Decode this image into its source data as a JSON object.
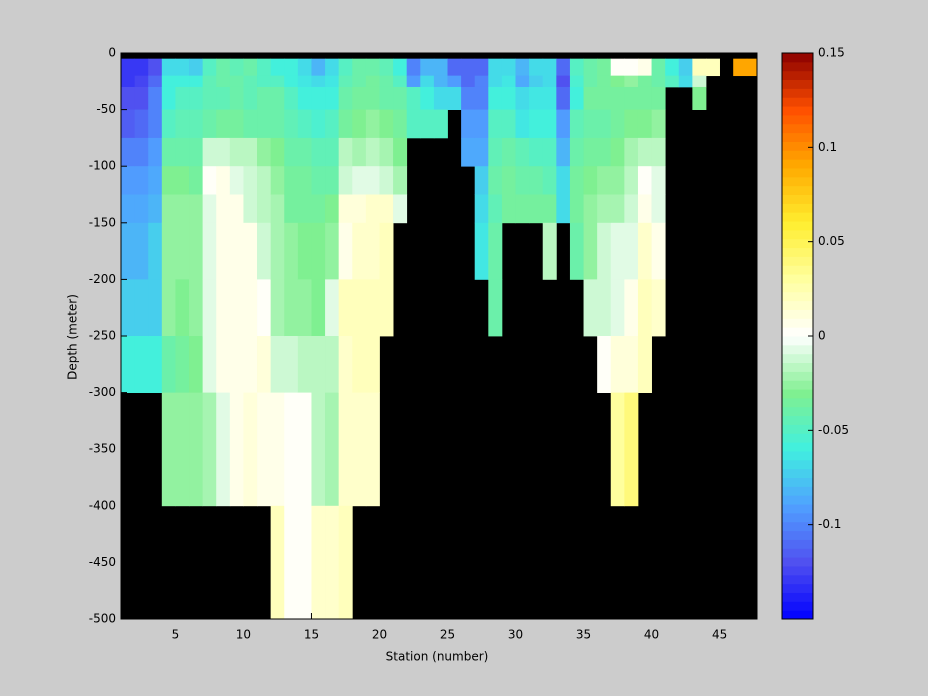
{
  "chart_data": {
    "type": "heatmap",
    "xlabel": "Station (number)",
    "ylabel": "Depth (meter)",
    "x": [
      1,
      2,
      3,
      4,
      5,
      6,
      7,
      8,
      9,
      10,
      11,
      12,
      13,
      14,
      15,
      16,
      17,
      18,
      19,
      20,
      21,
      22,
      23,
      24,
      25,
      26,
      27,
      28,
      29,
      30,
      31,
      32,
      33,
      34,
      35,
      36,
      37,
      38,
      39,
      40,
      41,
      42,
      43,
      44,
      45,
      46,
      47
    ],
    "y_edges": [
      0,
      -5,
      -20,
      -30,
      -50,
      -75,
      -100,
      -125,
      -150,
      -200,
      -250,
      -300,
      -400,
      -500
    ],
    "xlim": [
      1,
      47.75
    ],
    "ylim": [
      -500,
      0
    ],
    "xticks": [
      5,
      10,
      15,
      20,
      25,
      30,
      35,
      40,
      45
    ],
    "yticks": [
      0,
      -50,
      -100,
      -150,
      -200,
      -250,
      -300,
      -350,
      -400,
      -450,
      -500
    ],
    "clim": [
      -0.15,
      0.15
    ],
    "cticks": [
      -0.1,
      -0.05,
      0,
      0.05,
      0.1,
      0.15
    ],
    "colormap": [
      "#0000ff",
      "#5050f0",
      "#50a0ff",
      "#40f0e0",
      "#80f090",
      "#ffffff",
      "#ffffa0",
      "#ffee30",
      "#ffaa00",
      "#ff5000",
      "#8b0000"
    ],
    "missing_color": "#000000",
    "z": [
      [
        null,
        -0.13,
        -0.13,
        -0.12,
        -0.115,
        -0.1,
        -0.09,
        -0.085,
        -0.08,
        -0.075,
        -0.06,
        null,
        null
      ],
      [
        null,
        -0.13,
        -0.125,
        -0.12,
        -0.11,
        -0.1,
        -0.09,
        -0.085,
        -0.08,
        -0.075,
        -0.06,
        null,
        null
      ],
      [
        null,
        -0.12,
        -0.11,
        -0.1,
        -0.1,
        -0.09,
        -0.085,
        -0.08,
        -0.075,
        -0.075,
        -0.06,
        null,
        null
      ],
      [
        null,
        -0.07,
        -0.06,
        -0.06,
        -0.05,
        -0.04,
        -0.03,
        -0.025,
        -0.025,
        -0.025,
        -0.04,
        -0.025,
        null
      ],
      [
        null,
        -0.07,
        -0.06,
        -0.05,
        -0.045,
        -0.04,
        -0.03,
        -0.025,
        -0.025,
        -0.03,
        -0.035,
        -0.025,
        null
      ],
      [
        null,
        -0.075,
        -0.06,
        -0.05,
        -0.045,
        -0.04,
        -0.035,
        -0.025,
        -0.025,
        -0.025,
        -0.03,
        -0.025,
        null
      ],
      [
        null,
        -0.05,
        -0.045,
        -0.045,
        -0.04,
        -0.01,
        0,
        -0.005,
        -0.005,
        -0.005,
        -0.005,
        -0.02,
        null
      ],
      [
        null,
        -0.04,
        -0.04,
        -0.045,
        -0.035,
        -0.01,
        0.005,
        0.005,
        0.005,
        0.005,
        0.005,
        -0.005,
        null
      ],
      [
        null,
        -0.045,
        -0.04,
        -0.04,
        -0.035,
        -0.015,
        -0.005,
        0.005,
        0.005,
        0.005,
        0.005,
        0.005,
        null
      ],
      [
        null,
        -0.04,
        -0.045,
        -0.045,
        -0.04,
        -0.015,
        -0.01,
        -0.01,
        0.005,
        0.005,
        0.005,
        0.01,
        null
      ],
      [
        null,
        -0.05,
        -0.05,
        -0.04,
        -0.04,
        -0.025,
        -0.015,
        -0.015,
        -0.01,
        0,
        0.01,
        0.005,
        null
      ],
      [
        null,
        -0.06,
        -0.05,
        -0.04,
        -0.04,
        -0.03,
        -0.025,
        -0.02,
        -0.02,
        -0.02,
        -0.01,
        0.005,
        0.02
      ],
      [
        null,
        -0.06,
        -0.06,
        -0.05,
        -0.045,
        -0.04,
        -0.035,
        -0.035,
        -0.025,
        -0.025,
        -0.01,
        0,
        0
      ],
      [
        null,
        -0.07,
        -0.065,
        -0.06,
        -0.05,
        -0.04,
        -0.035,
        -0.035,
        -0.03,
        -0.025,
        -0.015,
        0,
        0
      ],
      [
        null,
        -0.08,
        -0.07,
        -0.06,
        -0.055,
        -0.045,
        -0.04,
        -0.035,
        -0.03,
        -0.03,
        -0.015,
        -0.015,
        0.015
      ],
      [
        null,
        -0.07,
        -0.065,
        -0.06,
        -0.05,
        -0.045,
        -0.04,
        -0.03,
        -0.025,
        -0.005,
        -0.015,
        -0.02,
        0.015
      ],
      [
        null,
        -0.05,
        -0.045,
        -0.04,
        -0.035,
        -0.015,
        -0.01,
        0.01,
        0.005,
        0.02,
        0.015,
        0.015,
        0.02
      ],
      [
        null,
        -0.04,
        -0.04,
        -0.035,
        -0.03,
        -0.02,
        -0.005,
        0.01,
        0.015,
        0.02,
        0.02,
        0.015,
        null
      ],
      [
        null,
        -0.04,
        -0.035,
        -0.035,
        -0.025,
        -0.015,
        -0.005,
        0.015,
        0.015,
        0.02,
        0.02,
        0.015,
        null
      ],
      [
        null,
        -0.045,
        -0.04,
        -0.04,
        -0.03,
        -0.02,
        -0.01,
        0.015,
        0.02,
        0.02,
        null,
        null,
        null
      ],
      [
        null,
        -0.06,
        -0.05,
        -0.04,
        -0.035,
        -0.03,
        -0.02,
        -0.005,
        null,
        null,
        null,
        null,
        null
      ],
      [
        null,
        -0.1,
        -0.09,
        -0.05,
        -0.05,
        null,
        null,
        null,
        null,
        null,
        null,
        null,
        null
      ],
      [
        null,
        -0.08,
        -0.07,
        -0.06,
        -0.05,
        null,
        null,
        null,
        null,
        null,
        null,
        null,
        null
      ],
      [
        null,
        -0.08,
        -0.08,
        -0.07,
        -0.05,
        null,
        null,
        null,
        null,
        null,
        null,
        null,
        null
      ],
      [
        null,
        -0.11,
        -0.09,
        -0.07,
        null,
        null,
        null,
        null,
        null,
        null,
        null,
        null,
        null
      ],
      [
        null,
        -0.11,
        -0.11,
        -0.1,
        -0.09,
        -0.085,
        null,
        null,
        null,
        null,
        null,
        null,
        null
      ],
      [
        null,
        -0.11,
        -0.1,
        -0.1,
        -0.09,
        -0.085,
        -0.075,
        -0.07,
        -0.065,
        null,
        null,
        null,
        null
      ],
      [
        null,
        -0.07,
        -0.07,
        -0.06,
        -0.05,
        -0.045,
        -0.04,
        -0.045,
        -0.04,
        -0.04,
        null,
        null,
        null
      ],
      [
        null,
        -0.07,
        -0.065,
        -0.06,
        -0.05,
        -0.04,
        -0.035,
        -0.035,
        null,
        null,
        null,
        null,
        null
      ],
      [
        null,
        -0.08,
        -0.085,
        -0.07,
        -0.065,
        -0.045,
        -0.04,
        -0.035,
        null,
        null,
        null,
        null,
        null
      ],
      [
        null,
        -0.07,
        -0.075,
        -0.065,
        -0.06,
        -0.05,
        -0.04,
        -0.035,
        null,
        null,
        null,
        null,
        null
      ],
      [
        null,
        -0.07,
        -0.07,
        -0.065,
        -0.06,
        -0.05,
        -0.045,
        -0.035,
        -0.015,
        null,
        null,
        null,
        null
      ],
      [
        null,
        -0.11,
        -0.12,
        -0.11,
        -0.09,
        -0.08,
        -0.07,
        -0.07,
        null,
        null,
        null,
        null,
        null
      ],
      [
        null,
        -0.05,
        -0.055,
        -0.06,
        -0.045,
        -0.04,
        -0.035,
        -0.035,
        -0.04,
        null,
        null,
        null,
        null
      ],
      [
        null,
        -0.04,
        -0.04,
        -0.035,
        -0.04,
        -0.035,
        -0.03,
        -0.025,
        -0.025,
        -0.01,
        null,
        null,
        null
      ],
      [
        null,
        -0.035,
        -0.035,
        -0.035,
        -0.04,
        -0.035,
        -0.025,
        -0.02,
        -0.01,
        -0.01,
        0,
        null,
        null
      ],
      [
        null,
        0,
        -0.03,
        -0.035,
        -0.035,
        -0.03,
        -0.025,
        -0.02,
        -0.005,
        -0.005,
        0.01,
        0.03,
        null
      ],
      [
        null,
        0,
        -0.025,
        -0.035,
        -0.03,
        -0.02,
        -0.015,
        -0.01,
        -0.005,
        0.005,
        0.01,
        0.04,
        null
      ],
      [
        null,
        0.005,
        -0.035,
        -0.035,
        -0.03,
        -0.015,
        0,
        0.005,
        0.015,
        0.02,
        0.02,
        null,
        null
      ],
      [
        null,
        -0.04,
        -0.04,
        -0.035,
        -0.025,
        -0.015,
        -0.005,
        -0.005,
        0.005,
        0.015,
        null,
        null,
        null
      ],
      [
        null,
        -0.06,
        -0.05,
        null,
        null,
        null,
        null,
        null,
        null,
        null,
        null,
        null,
        null
      ],
      [
        null,
        -0.075,
        -0.07,
        null,
        null,
        null,
        null,
        null,
        null,
        null,
        null,
        null,
        null
      ],
      [
        null,
        0.02,
        -0.01,
        -0.03,
        null,
        null,
        null,
        null,
        null,
        null,
        null,
        null,
        null
      ],
      [
        null,
        0.02,
        null,
        null,
        null,
        null,
        null,
        null,
        null,
        null,
        null,
        null,
        null
      ],
      [
        null,
        null,
        null,
        null,
        null,
        null,
        null,
        null,
        null,
        null,
        null,
        null,
        null
      ],
      [
        null,
        0.09,
        null,
        null,
        null,
        null,
        null,
        null,
        null,
        null,
        null,
        null,
        null
      ],
      [
        null,
        0.09,
        null,
        null,
        null,
        null,
        null,
        null,
        null,
        null,
        null,
        null,
        null
      ]
    ]
  }
}
